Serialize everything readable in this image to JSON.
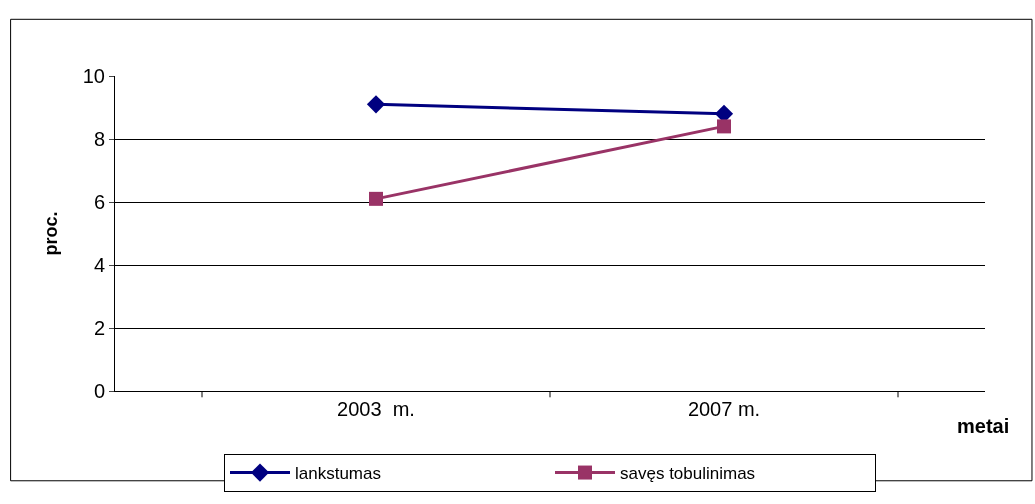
{
  "chart_data": {
    "type": "line",
    "xlabel": "metai",
    "ylabel": "proc.",
    "categories": [
      "2003  m.",
      "2007 m."
    ],
    "series": [
      {
        "name": "lankstumas",
        "color": "#000080",
        "values": [
          9.1,
          8.8
        ],
        "marker": "diamond"
      },
      {
        "name": "savęs tobulinimas",
        "color": "#993366",
        "values": [
          6.1,
          8.4
        ],
        "marker": "square"
      }
    ],
    "ylim": [
      0,
      10
    ],
    "yticks": [
      0,
      2,
      4,
      6,
      8,
      10
    ],
    "grid": "y",
    "legend": "bottom",
    "line_style": "solid"
  }
}
